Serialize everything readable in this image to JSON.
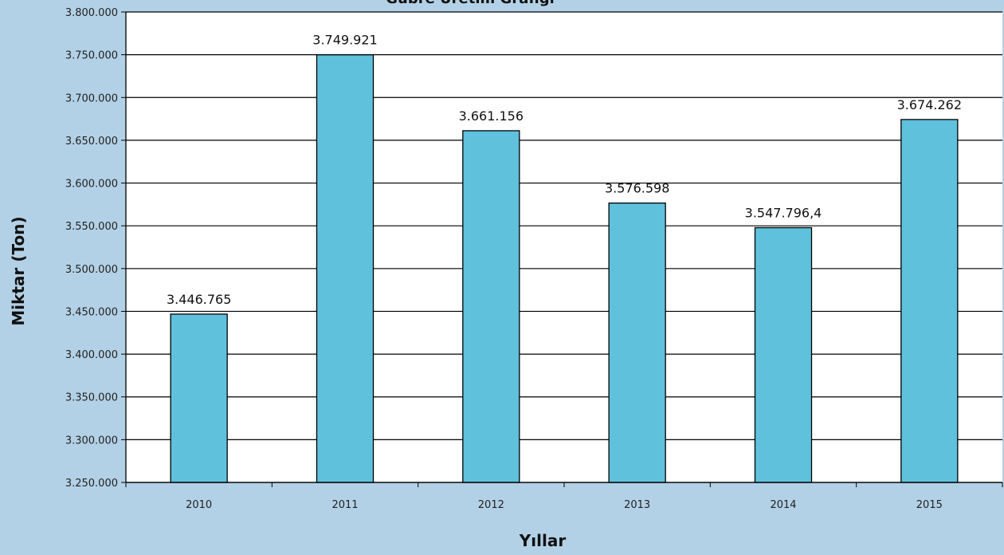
{
  "chart_data": {
    "type": "bar",
    "title": "Gübre Üretim Grafiği",
    "xlabel": "Yıllar",
    "ylabel": "Miktar (Ton)",
    "categories": [
      "2010",
      "2011",
      "2012",
      "2013",
      "2014",
      "2015"
    ],
    "values": [
      3446765,
      3749921,
      3661156,
      3576598,
      3547796.4,
      3674262
    ],
    "data_labels": [
      "3.446.765",
      "3.749.921",
      "3.661.156",
      "3.576.598",
      "3.547.796,4",
      "3.674.262"
    ],
    "ylim": [
      3250000,
      3800000
    ],
    "yticks": [
      3250000,
      3300000,
      3350000,
      3400000,
      3450000,
      3500000,
      3550000,
      3600000,
      3650000,
      3700000,
      3750000,
      3800000
    ],
    "ytick_labels": [
      "3.250.000",
      "3.300.000",
      "3.350.000",
      "3.400.000",
      "3.450.000",
      "3.500.000",
      "3.550.000",
      "3.600.000",
      "3.650.000",
      "3.700.000",
      "3.750.000",
      "3.800.000"
    ],
    "grid": true,
    "colors": {
      "bar": "#5fc1dc",
      "plot_background": "#ffffff",
      "page_background": "#b3d1e6",
      "gridline": "#000000"
    }
  }
}
